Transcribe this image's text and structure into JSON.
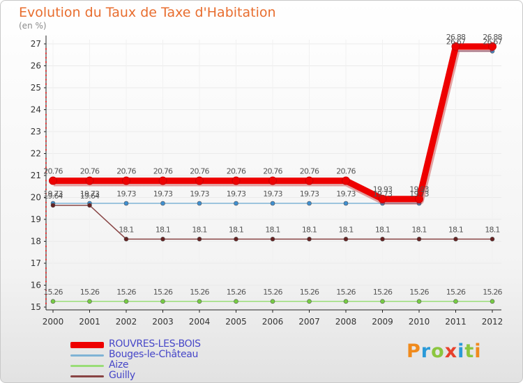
{
  "header": {
    "title": "Evolution du Taux de Taxe d'Habitation",
    "subtitle": "(en %)"
  },
  "chart_data": {
    "type": "line",
    "title": "Evolution du Taux de Taxe d'Habitation",
    "ylabel": "(en %)",
    "xlabel": "",
    "ylim": [
      15,
      27
    ],
    "yticks": [
      "15",
      "16",
      "17",
      "18",
      "19",
      "20",
      "21",
      "22",
      "23",
      "24",
      "25",
      "26",
      "27"
    ],
    "categories": [
      "2000",
      "2001",
      "2002",
      "2003",
      "2004",
      "2005",
      "2006",
      "2007",
      "2008",
      "2009",
      "2010",
      "2011",
      "2012"
    ],
    "legend_position": "bottom-left",
    "series": [
      {
        "name": "ROUVRES-LES-BOIS",
        "color": "#ee0000",
        "marker": "#ee0000",
        "emphasis": true,
        "values": [
          20.76,
          20.76,
          20.76,
          20.76,
          20.76,
          20.76,
          20.76,
          20.76,
          20.76,
          19.93,
          19.93,
          26.88,
          26.88
        ],
        "labels": [
          "20.76",
          "20.76",
          "20.76",
          "20.76",
          "20.76",
          "20.76",
          "20.76",
          "20.76",
          "20.76",
          "19.93",
          "19.93",
          "26.88",
          "26.88"
        ]
      },
      {
        "name": "Bouges-le-Château",
        "color": "#7fb3d5",
        "marker": "#3f8fd0",
        "values": [
          19.73,
          19.73,
          19.73,
          19.73,
          19.73,
          19.73,
          19.73,
          19.73,
          19.73,
          19.73,
          19.73,
          26.67,
          26.67
        ],
        "labels": [
          "19.73",
          "19.73",
          "19.73",
          "19.73",
          "19.73",
          "19.73",
          "19.73",
          "19.73",
          "19.73",
          "19.73",
          "19.73",
          "26.67",
          "26.67"
        ]
      },
      {
        "name": "Aize",
        "color": "#99dd77",
        "marker": "#77cc44",
        "values": [
          15.26,
          15.26,
          15.26,
          15.26,
          15.26,
          15.26,
          15.26,
          15.26,
          15.26,
          15.26,
          15.26,
          15.26,
          15.26
        ],
        "labels": [
          "15.26",
          "15.26",
          "15.26",
          "15.26",
          "15.26",
          "15.26",
          "15.26",
          "15.26",
          "15.26",
          "15.26",
          "15.26",
          "15.26",
          "15.26"
        ]
      },
      {
        "name": "Guilly",
        "color": "#884444",
        "marker": "#662222",
        "values": [
          19.64,
          19.64,
          18.1,
          18.1,
          18.1,
          18.1,
          18.1,
          18.1,
          18.1,
          18.1,
          18.1,
          18.1,
          18.1
        ],
        "labels": [
          "19.64",
          "19.64",
          "18.1",
          "18.1",
          "18.1",
          "18.1",
          "18.1",
          "18.1",
          "18.1",
          "18.1",
          "18.1",
          "18.1",
          "18.1"
        ]
      }
    ]
  },
  "logo": {
    "text": "Proxiti",
    "colors": [
      "#f08a1c",
      "#2a9ad8",
      "#8cc63f",
      "#e8412c",
      "#2a9ad8",
      "#8cc63f",
      "#f08a1c"
    ]
  }
}
